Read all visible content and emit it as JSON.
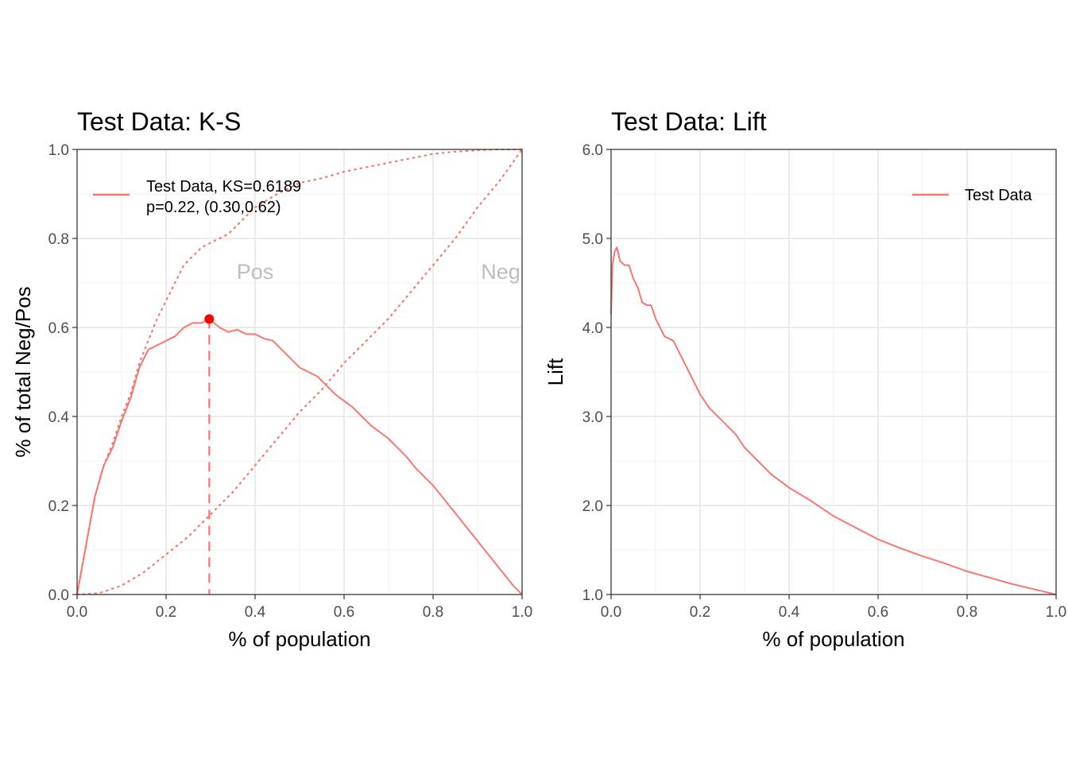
{
  "colors": {
    "series": "#f8766d",
    "ks_point": "#ff0000",
    "grid": "#ebebeb",
    "region_label": "#bebebe"
  },
  "chart_data": [
    {
      "type": "line",
      "title": "Test Data: K-S",
      "xlabel": "% of population",
      "ylabel": "% of total Neg/Pos",
      "xlim": [
        0,
        1
      ],
      "ylim": [
        0,
        1
      ],
      "x_ticks": [
        "0.0",
        "0.2",
        "0.4",
        "0.6",
        "0.8",
        "1.0"
      ],
      "y_ticks": [
        "0.0",
        "0.2",
        "0.4",
        "0.6",
        "0.8",
        "1.0"
      ],
      "grid": true,
      "legend_position": "top-left",
      "legend": [
        "Test Data, KS=0.6189",
        "p=0.22, (0.30,0.62)"
      ],
      "annotations": [
        {
          "text": "Pos",
          "x": 0.4,
          "y": 0.72
        },
        {
          "text": "Neg",
          "x": 0.95,
          "y": 0.72
        }
      ],
      "ks_point": {
        "x": 0.297,
        "y": 0.619
      },
      "series": [
        {
          "style": "solid",
          "x": [
            0,
            0.02,
            0.04,
            0.06,
            0.08,
            0.1,
            0.12,
            0.14,
            0.16,
            0.18,
            0.2,
            0.22,
            0.24,
            0.26,
            0.28,
            0.297,
            0.32,
            0.34,
            0.36,
            0.38,
            0.4,
            0.42,
            0.44,
            0.46,
            0.48,
            0.5,
            0.52,
            0.54,
            0.56,
            0.58,
            0.6,
            0.62,
            0.64,
            0.66,
            0.68,
            0.7,
            0.72,
            0.74,
            0.76,
            0.78,
            0.8,
            0.82,
            0.84,
            0.86,
            0.88,
            0.9,
            0.92,
            0.94,
            0.96,
            0.98,
            1.0
          ],
          "y": [
            0,
            0.11,
            0.22,
            0.29,
            0.33,
            0.39,
            0.44,
            0.51,
            0.55,
            0.56,
            0.57,
            0.58,
            0.6,
            0.61,
            0.61,
            0.619,
            0.6,
            0.59,
            0.595,
            0.585,
            0.585,
            0.575,
            0.57,
            0.55,
            0.53,
            0.51,
            0.5,
            0.49,
            0.47,
            0.45,
            0.435,
            0.42,
            0.4,
            0.38,
            0.365,
            0.35,
            0.33,
            0.31,
            0.285,
            0.265,
            0.245,
            0.22,
            0.195,
            0.17,
            0.145,
            0.12,
            0.095,
            0.07,
            0.045,
            0.02,
            0.0
          ]
        },
        {
          "name": "Pos",
          "style": "dotted",
          "x": [
            0,
            0.02,
            0.04,
            0.06,
            0.08,
            0.1,
            0.12,
            0.14,
            0.16,
            0.18,
            0.2,
            0.22,
            0.24,
            0.26,
            0.28,
            0.3,
            0.32,
            0.34,
            0.36,
            0.38,
            0.4,
            0.45,
            0.5,
            0.55,
            0.6,
            0.65,
            0.7,
            0.75,
            0.8,
            0.85,
            0.9,
            0.95,
            1.0
          ],
          "y": [
            0,
            0.11,
            0.22,
            0.29,
            0.34,
            0.4,
            0.45,
            0.52,
            0.57,
            0.62,
            0.66,
            0.7,
            0.74,
            0.76,
            0.78,
            0.79,
            0.8,
            0.81,
            0.83,
            0.85,
            0.87,
            0.9,
            0.925,
            0.935,
            0.95,
            0.96,
            0.97,
            0.98,
            0.99,
            0.995,
            0.998,
            1.0,
            1.0
          ]
        },
        {
          "name": "Neg",
          "style": "dotted",
          "x": [
            0,
            0.05,
            0.1,
            0.15,
            0.2,
            0.25,
            0.3,
            0.35,
            0.4,
            0.45,
            0.5,
            0.55,
            0.6,
            0.65,
            0.7,
            0.75,
            0.8,
            0.85,
            0.9,
            0.95,
            1.0
          ],
          "y": [
            0,
            0.003,
            0.02,
            0.05,
            0.09,
            0.13,
            0.18,
            0.23,
            0.29,
            0.35,
            0.41,
            0.46,
            0.52,
            0.57,
            0.62,
            0.68,
            0.74,
            0.8,
            0.87,
            0.93,
            1.0
          ]
        }
      ]
    },
    {
      "type": "line",
      "title": "Test Data: Lift",
      "xlabel": "% of population",
      "ylabel": "Lift",
      "xlim": [
        0,
        1
      ],
      "ylim": [
        1,
        6
      ],
      "x_ticks": [
        "0.0",
        "0.2",
        "0.4",
        "0.6",
        "0.8",
        "1.0"
      ],
      "y_ticks": [
        "1.0",
        "2.0",
        "3.0",
        "4.0",
        "5.0",
        "6.0"
      ],
      "grid": true,
      "legend_position": "top-right",
      "legend": [
        "Test Data"
      ],
      "series": [
        {
          "name": "Test Data",
          "style": "solid",
          "x": [
            0.0,
            0.003,
            0.008,
            0.013,
            0.02,
            0.03,
            0.04,
            0.05,
            0.06,
            0.07,
            0.08,
            0.09,
            0.1,
            0.12,
            0.14,
            0.16,
            0.18,
            0.2,
            0.22,
            0.25,
            0.28,
            0.3,
            0.33,
            0.36,
            0.4,
            0.45,
            0.5,
            0.55,
            0.6,
            0.65,
            0.7,
            0.75,
            0.8,
            0.85,
            0.9,
            0.95,
            1.0
          ],
          "y": [
            4.15,
            4.7,
            4.85,
            4.9,
            4.75,
            4.7,
            4.7,
            4.55,
            4.45,
            4.28,
            4.25,
            4.25,
            4.1,
            3.9,
            3.85,
            3.65,
            3.45,
            3.25,
            3.1,
            2.95,
            2.8,
            2.65,
            2.5,
            2.35,
            2.2,
            2.05,
            1.88,
            1.75,
            1.62,
            1.52,
            1.43,
            1.35,
            1.26,
            1.19,
            1.12,
            1.06,
            1.0
          ]
        }
      ]
    }
  ]
}
